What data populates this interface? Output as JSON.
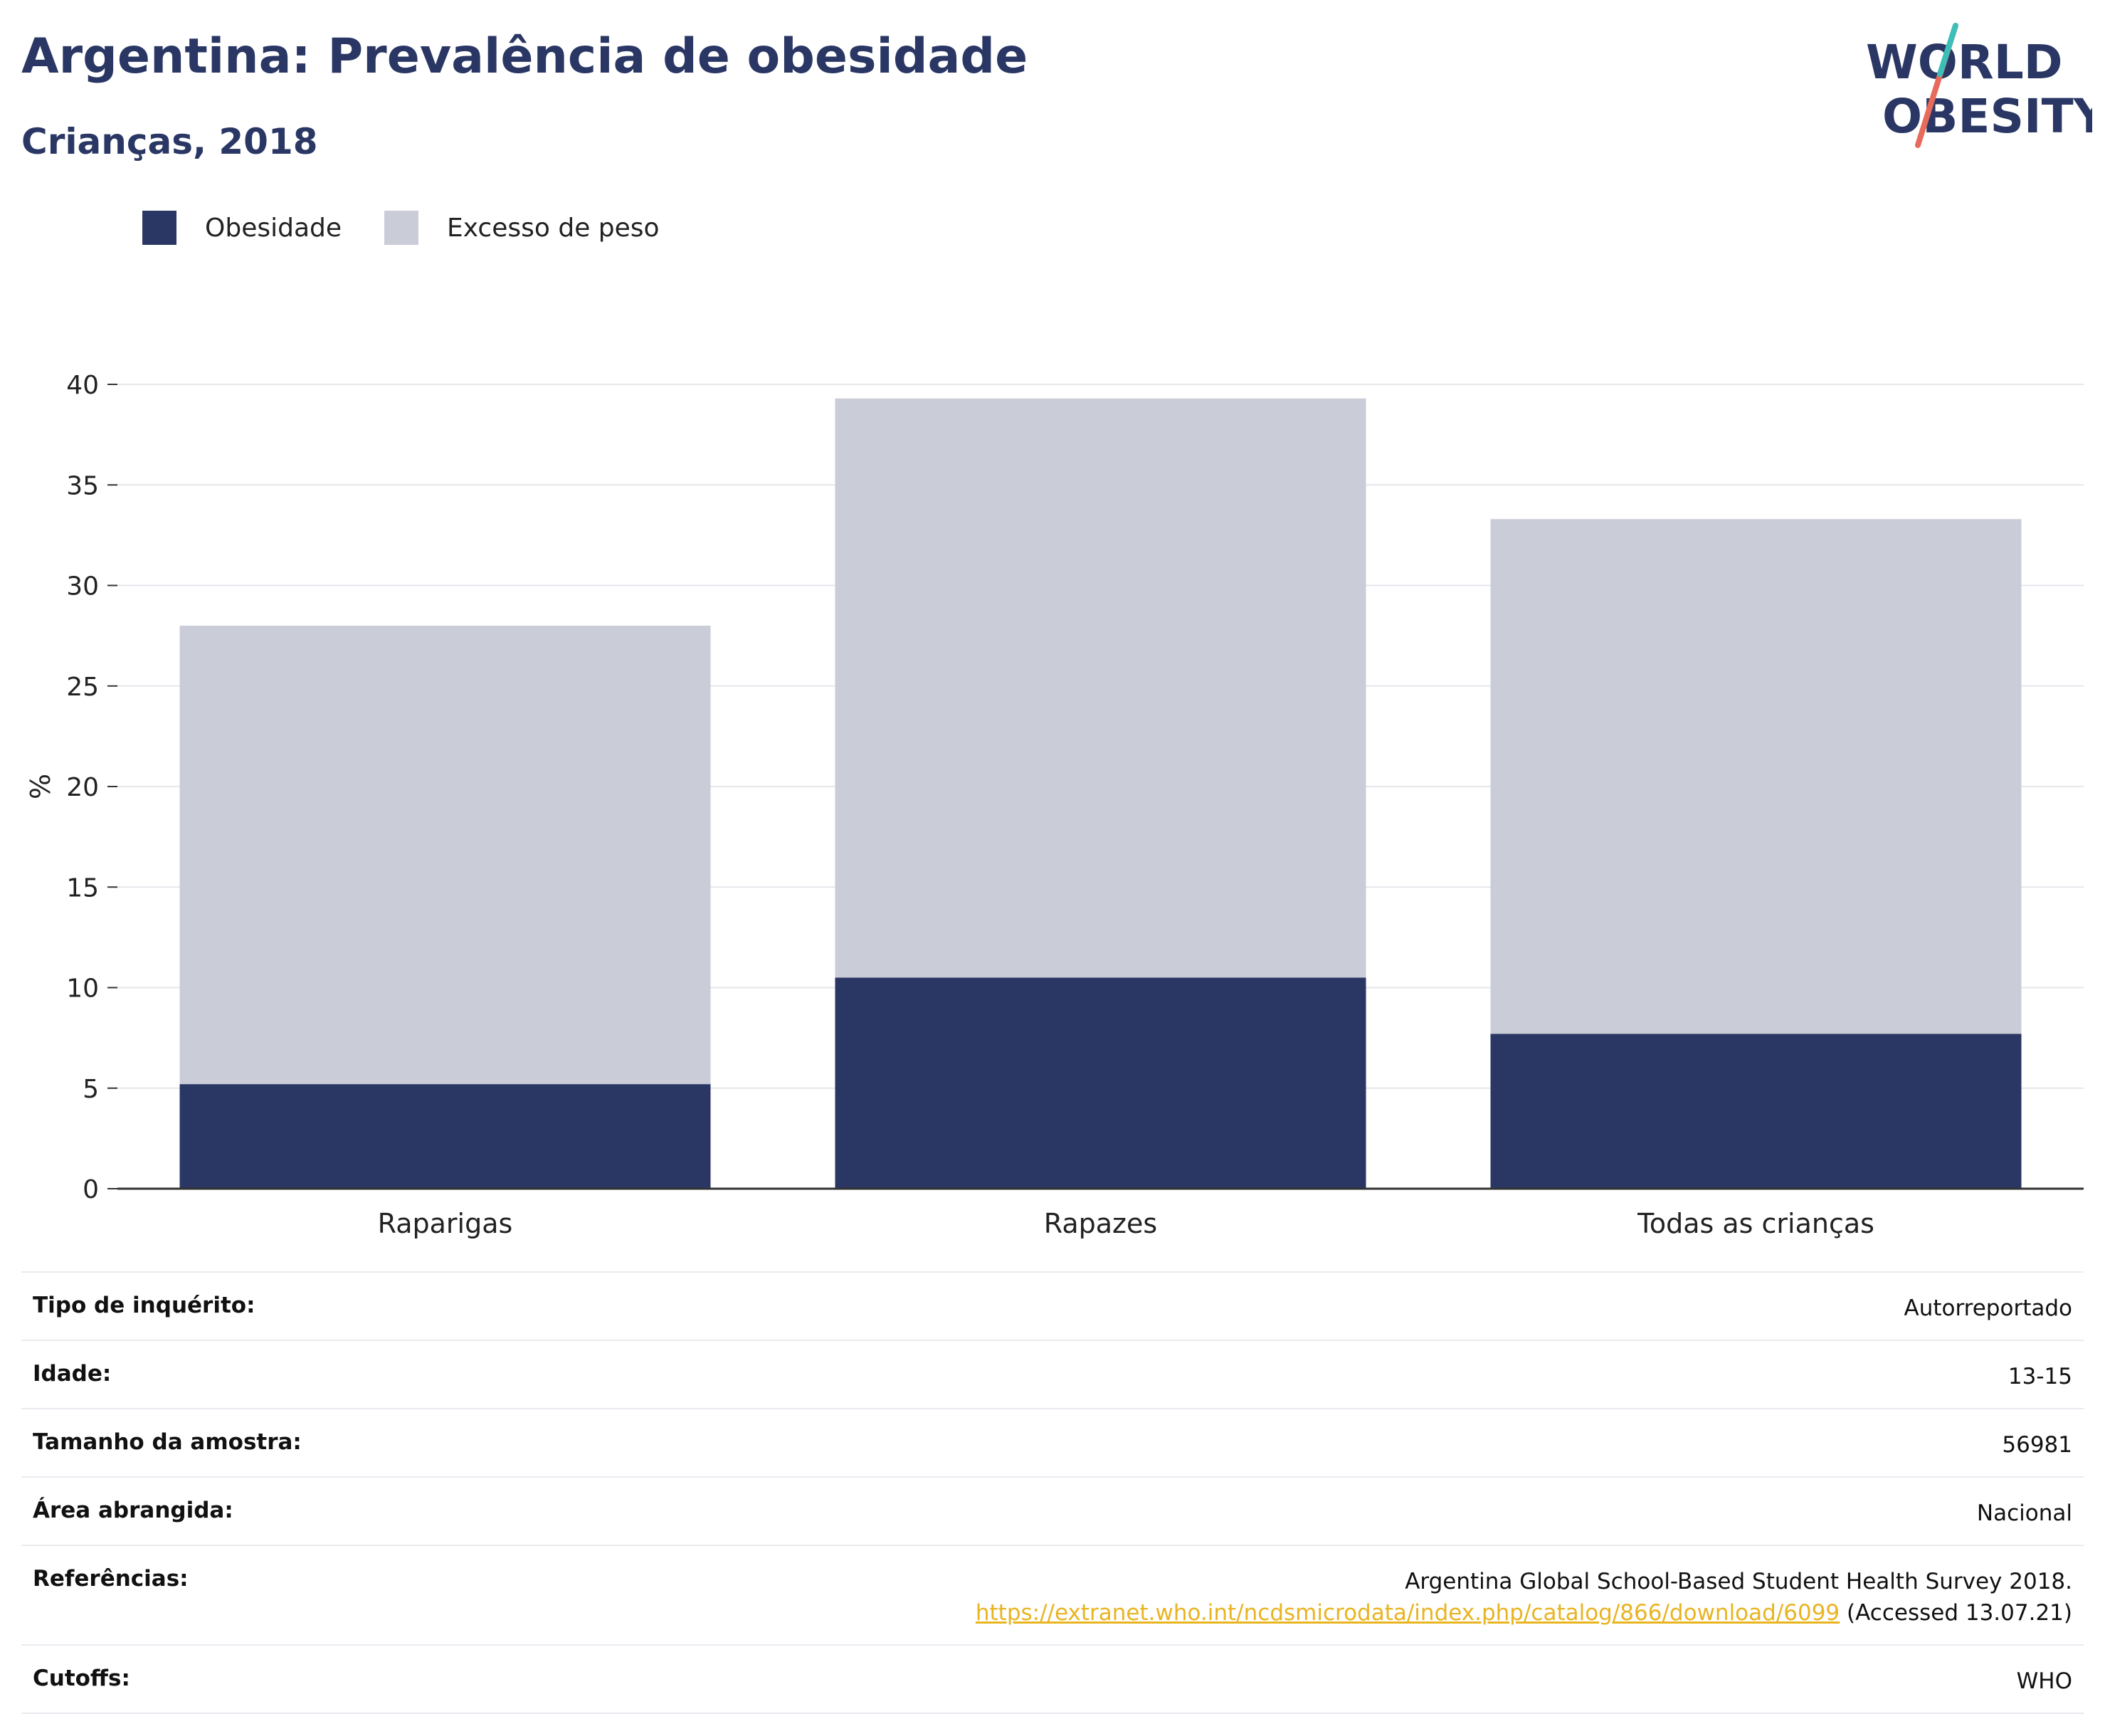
{
  "header": {
    "title": "Argentina: Prevalência de obesidade",
    "subtitle": "Crianças, 2018"
  },
  "logo": {
    "line1": "WORLD",
    "line2": "OBESITY",
    "icon": "slash-logo-icon",
    "colors": {
      "text": "#2a3764",
      "slash_top": "#3bbfb8",
      "slash_bottom": "#e86a5a"
    }
  },
  "legend": {
    "items": [
      {
        "label": "Obesidade",
        "color": "#2a3764"
      },
      {
        "label": "Excesso de peso",
        "color": "#cacdd8"
      }
    ]
  },
  "chart_data": {
    "type": "bar",
    "stacked": true,
    "categories": [
      "Raparigas",
      "Rapazes",
      "Todas as crianças"
    ],
    "series": [
      {
        "name": "Obesidade",
        "values": [
          5.2,
          10.5,
          7.7
        ],
        "color": "#2a3764"
      },
      {
        "name": "Excesso de peso",
        "values": [
          22.8,
          28.8,
          25.6
        ],
        "color": "#cacdd8"
      }
    ],
    "ylabel": "%",
    "ylim": [
      0,
      40
    ],
    "yticks": [
      0,
      5,
      10,
      15,
      20,
      25,
      30,
      35,
      40
    ],
    "grid": true,
    "legend_position": "top-left"
  },
  "meta": {
    "rows": [
      {
        "label": "Tipo de inquérito:",
        "value": "Autorreportado"
      },
      {
        "label": "Idade:",
        "value": "13-15"
      },
      {
        "label": "Tamanho da amostra:",
        "value": "56981"
      },
      {
        "label": "Área abrangida:",
        "value": "Nacional"
      }
    ],
    "references": {
      "label": "Referências:",
      "line1": "Argentina Global School-Based Student Health Survey 2018.",
      "link": "https://extranet.who.int/ncdsmicrodata/index.php/catalog/866/download/6099",
      "accessed": " (Accessed 13.07.21)"
    },
    "cutoffs": {
      "label": "Cutoffs:",
      "value": "WHO"
    }
  }
}
